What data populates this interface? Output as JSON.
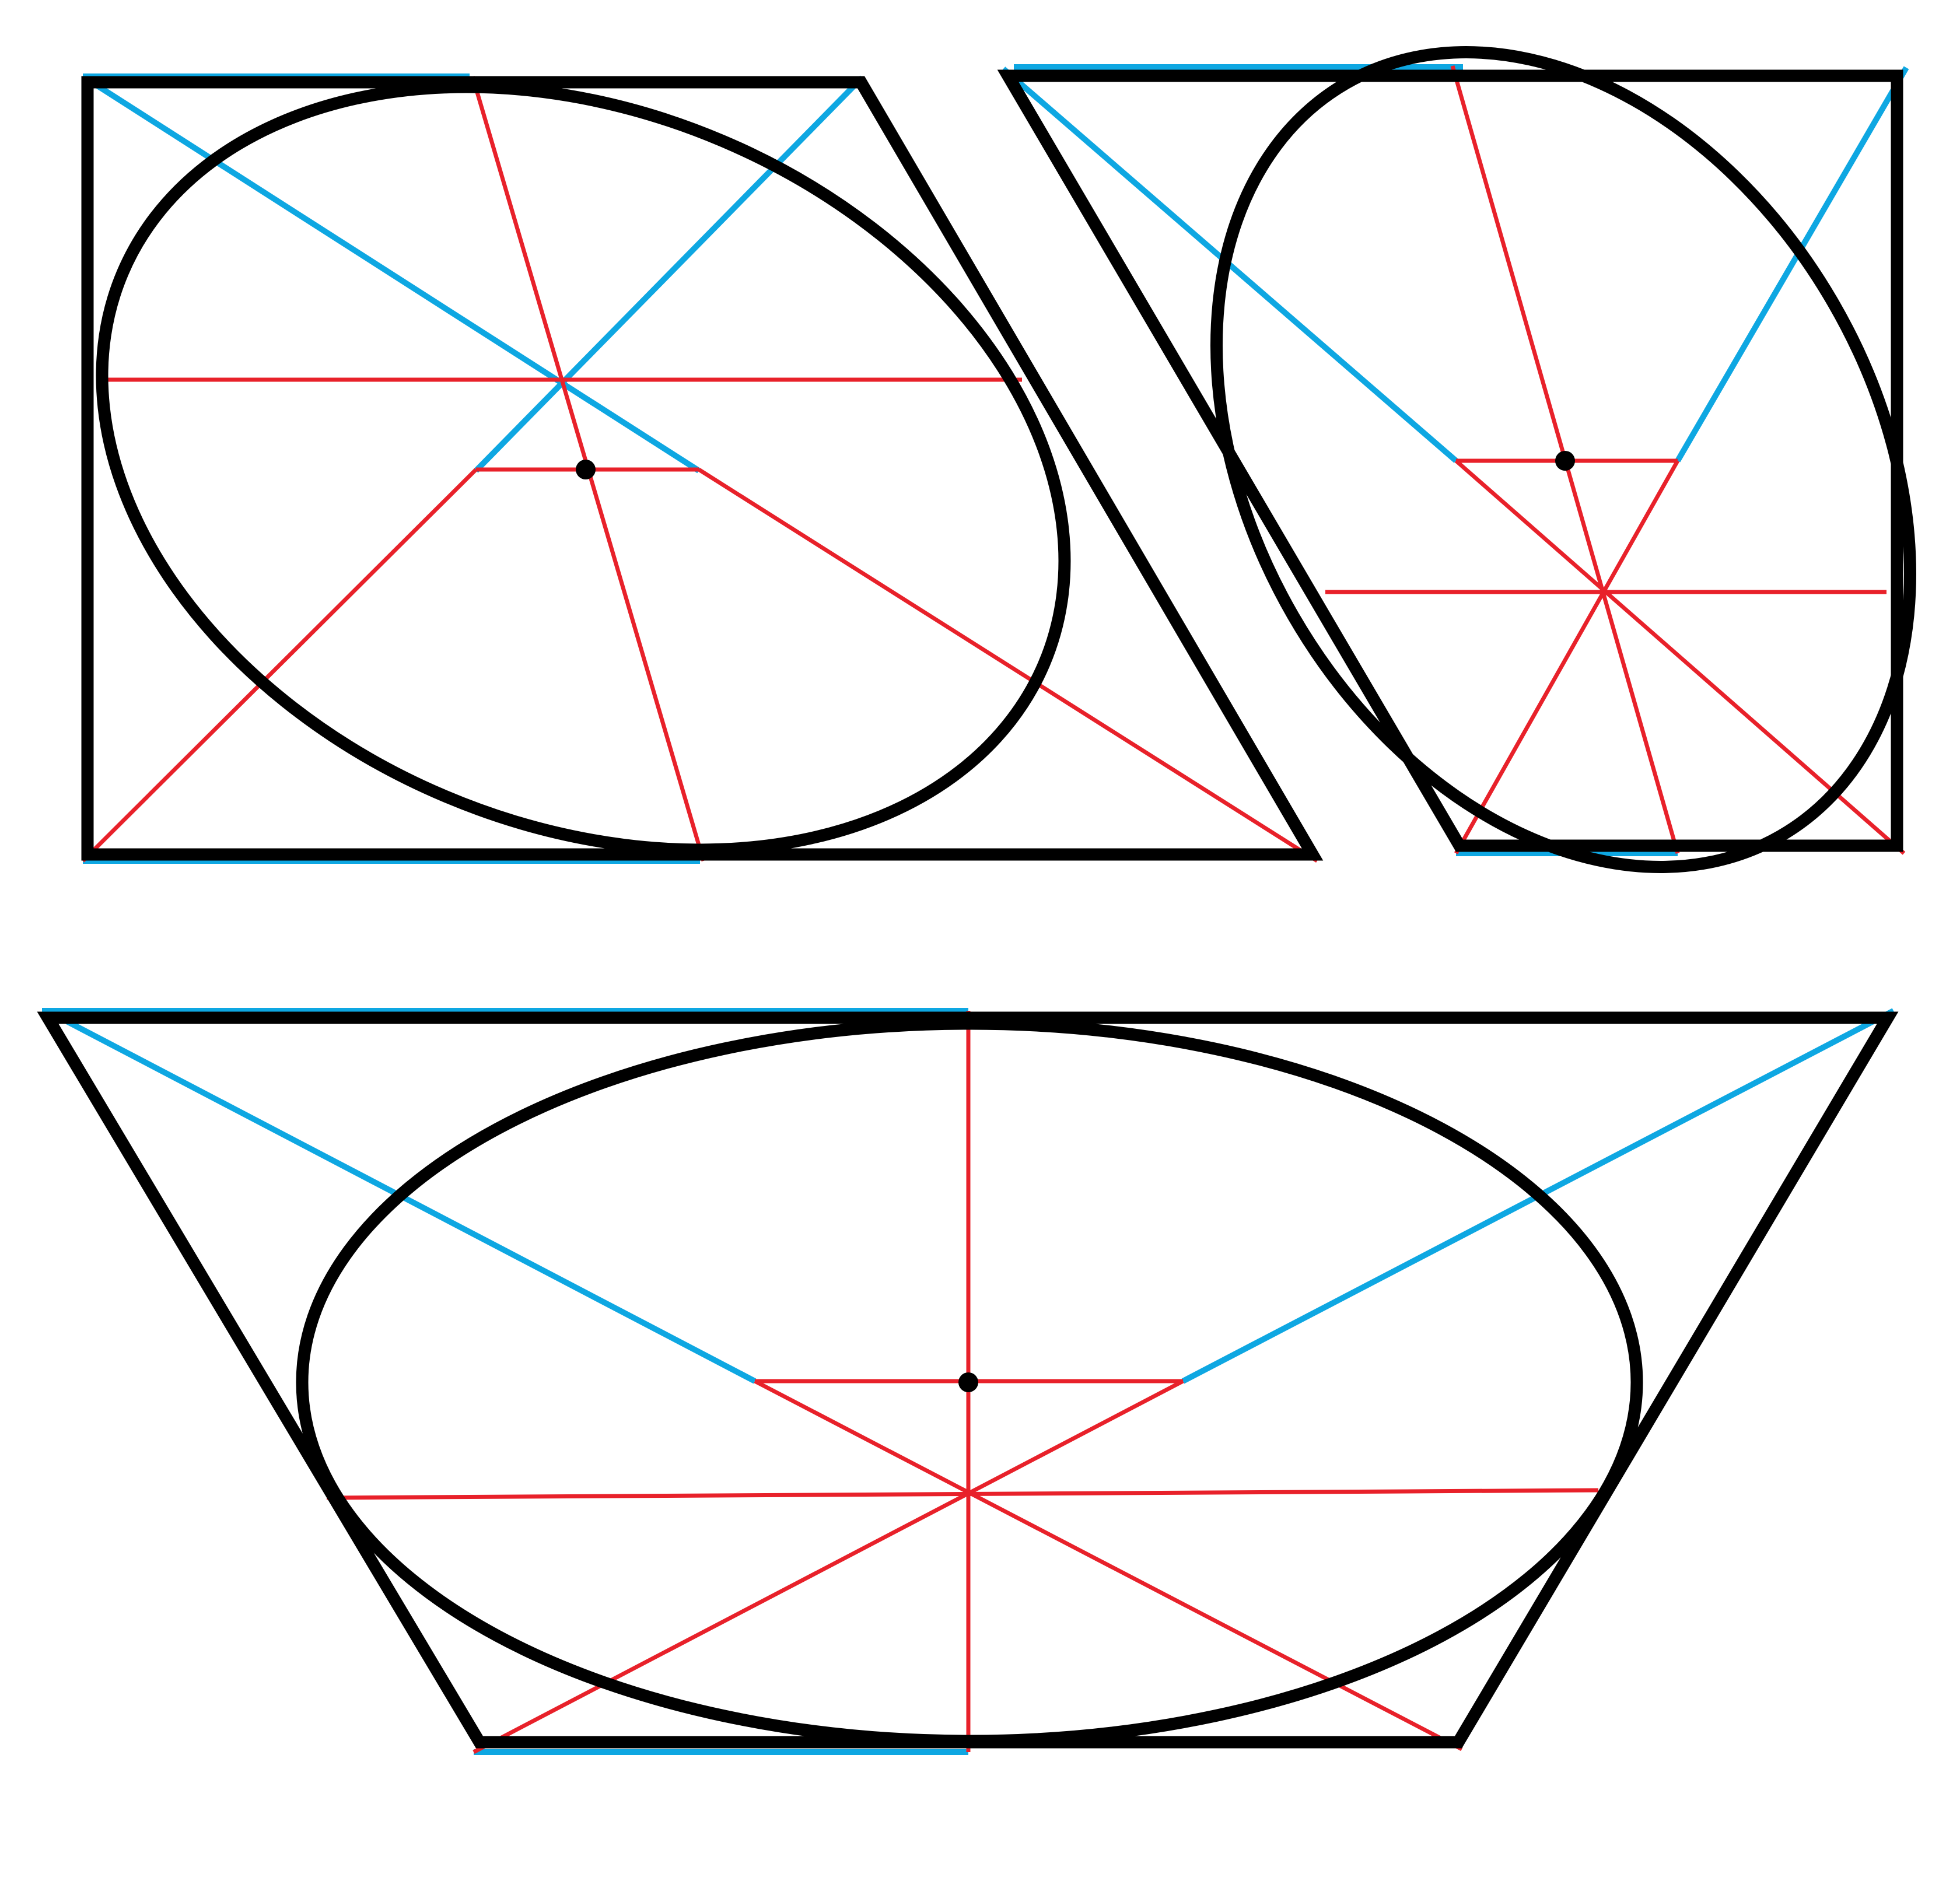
{
  "colors": {
    "background": "#ffffff",
    "outline": "#000000",
    "construction_red": "#e8212a",
    "construction_blue": "#0ea7e2"
  },
  "figures": [
    {
      "name": "top-left-trapezoid",
      "kind": "right-trapezoid-with-inscribed-ellipse"
    },
    {
      "name": "top-right-trapezoid",
      "kind": "right-trapezoid-with-inscribed-ellipse"
    },
    {
      "name": "bottom-trapezoid",
      "kind": "isosceles-trapezoid-with-inscribed-ellipse"
    }
  ]
}
